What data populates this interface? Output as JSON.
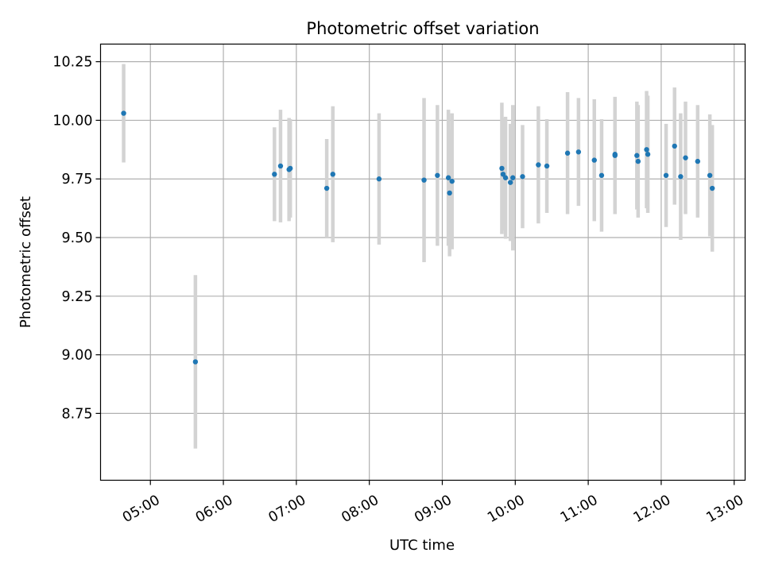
{
  "chart_data": {
    "type": "scatter",
    "title": "Photometric offset variation",
    "xlabel": "UTC time",
    "ylabel": "Photometric offset",
    "x_unit": "time of day (UTC)",
    "xlim": [
      "04:19",
      "13:09"
    ],
    "ylim": [
      8.465,
      10.325
    ],
    "x_ticks": [
      "05:00",
      "06:00",
      "07:00",
      "08:00",
      "09:00",
      "10:00",
      "11:00",
      "12:00",
      "13:00"
    ],
    "y_ticks": [
      "8.75",
      "9.00",
      "9.25",
      "9.50",
      "9.75",
      "10.00",
      "10.25"
    ],
    "grid": true,
    "series": [
      {
        "marker_color": "#1f77b4",
        "errorbar_color": "#d3d3d3",
        "points": [
          {
            "x": "04:38",
            "y": 10.03,
            "err": 0.21
          },
          {
            "x": "05:37",
            "y": 8.97,
            "err": 0.37
          },
          {
            "x": "06:42",
            "y": 9.77,
            "err": 0.2
          },
          {
            "x": "06:47",
            "y": 9.805,
            "err": 0.24
          },
          {
            "x": "06:54",
            "y": 9.79,
            "err": 0.22
          },
          {
            "x": "06:55",
            "y": 9.795,
            "err": 0.21
          },
          {
            "x": "07:25",
            "y": 9.71,
            "err": 0.21
          },
          {
            "x": "07:30",
            "y": 9.77,
            "err": 0.29
          },
          {
            "x": "08:08",
            "y": 9.75,
            "err": 0.28
          },
          {
            "x": "08:45",
            "y": 9.745,
            "err": 0.35
          },
          {
            "x": "08:56",
            "y": 9.765,
            "err": 0.3
          },
          {
            "x": "09:05",
            "y": 9.755,
            "err": 0.29
          },
          {
            "x": "09:06",
            "y": 9.69,
            "err": 0.27
          },
          {
            "x": "09:08",
            "y": 9.74,
            "err": 0.29
          },
          {
            "x": "09:49",
            "y": 9.795,
            "err": 0.28
          },
          {
            "x": "09:50",
            "y": 9.77,
            "err": 0.24
          },
          {
            "x": "09:52",
            "y": 9.755,
            "err": 0.26
          },
          {
            "x": "09:56",
            "y": 9.735,
            "err": 0.25
          },
          {
            "x": "09:58",
            "y": 9.755,
            "err": 0.31
          },
          {
            "x": "10:06",
            "y": 9.76,
            "err": 0.22
          },
          {
            "x": "10:19",
            "y": 9.81,
            "err": 0.25
          },
          {
            "x": "10:26",
            "y": 9.805,
            "err": 0.2
          },
          {
            "x": "10:43",
            "y": 9.86,
            "err": 0.26
          },
          {
            "x": "10:52",
            "y": 9.865,
            "err": 0.23
          },
          {
            "x": "11:05",
            "y": 9.83,
            "err": 0.26
          },
          {
            "x": "11:11",
            "y": 9.765,
            "err": 0.24
          },
          {
            "x": "11:22",
            "y": 9.855,
            "err": 0.24
          },
          {
            "x": "11:22",
            "y": 9.85,
            "err": 0.25
          },
          {
            "x": "11:40",
            "y": 9.85,
            "err": 0.23
          },
          {
            "x": "11:41",
            "y": 9.825,
            "err": 0.24
          },
          {
            "x": "11:48",
            "y": 9.875,
            "err": 0.25
          },
          {
            "x": "11:49",
            "y": 9.855,
            "err": 0.25
          },
          {
            "x": "12:04",
            "y": 9.765,
            "err": 0.22
          },
          {
            "x": "12:11",
            "y": 9.89,
            "err": 0.25
          },
          {
            "x": "12:16",
            "y": 9.76,
            "err": 0.27
          },
          {
            "x": "12:20",
            "y": 9.84,
            "err": 0.24
          },
          {
            "x": "12:30",
            "y": 9.825,
            "err": 0.24
          },
          {
            "x": "12:40",
            "y": 9.765,
            "err": 0.26
          },
          {
            "x": "12:42",
            "y": 9.71,
            "err": 0.27
          }
        ]
      }
    ]
  }
}
